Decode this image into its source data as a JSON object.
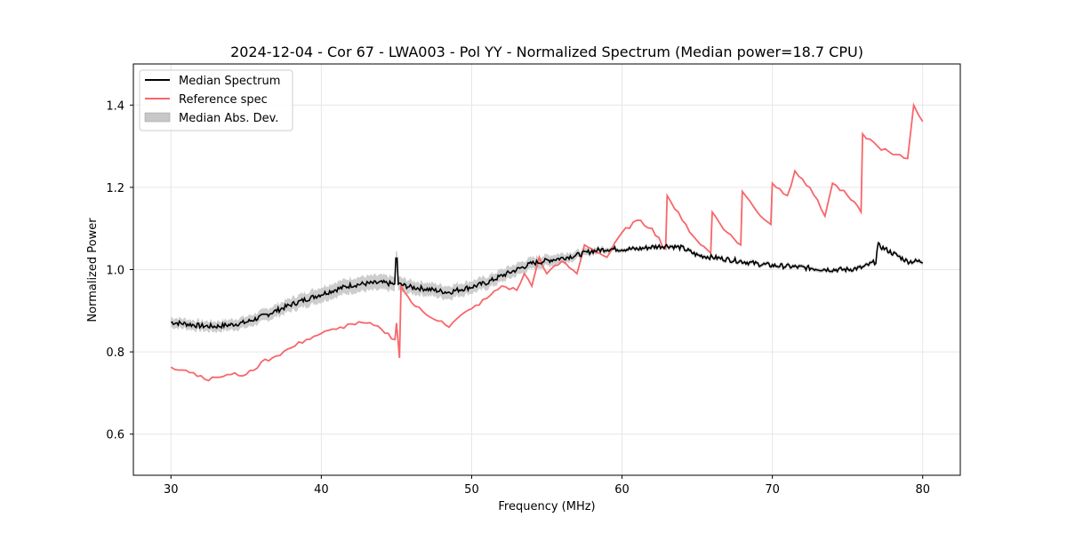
{
  "chart_data": {
    "type": "line",
    "title": "2024-12-04 - Cor 67 - LWA003 - Pol YY - Normalized Spectrum (Median power=18.7 CPU)",
    "xlabel": "Frequency (MHz)",
    "ylabel": "Normalized Power",
    "xlim": [
      27.5,
      82.5
    ],
    "ylim": [
      0.5,
      1.5
    ],
    "xticks": [
      30,
      40,
      50,
      60,
      70,
      80
    ],
    "yticks": [
      0.6,
      0.8,
      1.0,
      1.2,
      1.4
    ],
    "xtick_labels": [
      "30",
      "40",
      "50",
      "60",
      "70",
      "80"
    ],
    "ytick_labels": [
      "0.6",
      "0.8",
      "1.0",
      "1.2",
      "1.4"
    ],
    "grid": true,
    "legend_position": "top-left",
    "series": [
      {
        "name": "Median Spectrum",
        "color": "#000000",
        "x": [
          30,
          31,
          32,
          33,
          34,
          35,
          36,
          37,
          38,
          39,
          40,
          41,
          42,
          43,
          44,
          44.9,
          45.0,
          45.1,
          46,
          47,
          48,
          48.5,
          49,
          50,
          51,
          52,
          53,
          54,
          55,
          56,
          57,
          58,
          59,
          60,
          61,
          62,
          63,
          64,
          65,
          66,
          67,
          68,
          69,
          70,
          71,
          72,
          73,
          74,
          75,
          76,
          76.9,
          77,
          78,
          79,
          80
        ],
        "values": [
          0.872,
          0.868,
          0.863,
          0.862,
          0.866,
          0.872,
          0.885,
          0.9,
          0.915,
          0.928,
          0.94,
          0.952,
          0.962,
          0.966,
          0.968,
          0.965,
          1.07,
          0.965,
          0.957,
          0.953,
          0.947,
          0.945,
          0.95,
          0.958,
          0.968,
          0.985,
          1.0,
          1.015,
          1.022,
          1.028,
          1.035,
          1.045,
          1.05,
          1.05,
          1.05,
          1.055,
          1.058,
          1.053,
          1.035,
          1.03,
          1.025,
          1.02,
          1.014,
          1.01,
          1.008,
          1.005,
          1.002,
          1.0,
          1.0,
          1.005,
          1.02,
          1.06,
          1.04,
          1.02,
          1.02
        ]
      },
      {
        "name": "Reference spec",
        "color": "#f8666a",
        "x": [
          30,
          31,
          32,
          32.5,
          33,
          34,
          35,
          35.5,
          36,
          37,
          38,
          39,
          40,
          41,
          42,
          43,
          44,
          44.9,
          45.0,
          45.2,
          45.3,
          46,
          47,
          48,
          48.5,
          49,
          50,
          51,
          52,
          53,
          53.5,
          54,
          54.5,
          55,
          56,
          57,
          57.5,
          58,
          59,
          60,
          61,
          62,
          62.9,
          63,
          64,
          65,
          65.9,
          66,
          67,
          67.9,
          68,
          69,
          69.9,
          70,
          71,
          71.5,
          72,
          73,
          73.5,
          74,
          75,
          75.9,
          76,
          77,
          78,
          79,
          79.4,
          80
        ],
        "values": [
          0.763,
          0.755,
          0.742,
          0.73,
          0.738,
          0.745,
          0.745,
          0.755,
          0.775,
          0.79,
          0.81,
          0.83,
          0.845,
          0.855,
          0.868,
          0.87,
          0.855,
          0.83,
          0.87,
          0.785,
          0.96,
          0.92,
          0.89,
          0.875,
          0.86,
          0.88,
          0.905,
          0.93,
          0.96,
          0.95,
          0.99,
          0.96,
          1.03,
          0.99,
          1.02,
          0.99,
          1.06,
          1.05,
          1.03,
          1.09,
          1.12,
          1.1,
          1.05,
          1.18,
          1.12,
          1.07,
          1.04,
          1.14,
          1.09,
          1.06,
          1.19,
          1.14,
          1.11,
          1.21,
          1.18,
          1.24,
          1.22,
          1.17,
          1.13,
          1.21,
          1.18,
          1.14,
          1.33,
          1.3,
          1.28,
          1.27,
          1.4,
          1.36
        ]
      },
      {
        "name": "Median Abs. Dev.",
        "color": "#c8c8c8",
        "x": [
          30,
          32,
          34,
          36,
          38,
          40,
          42,
          44,
          46,
          48,
          50,
          52,
          54,
          56,
          58,
          60
        ],
        "values": [
          0.012,
          0.012,
          0.013,
          0.014,
          0.016,
          0.018,
          0.018,
          0.018,
          0.016,
          0.016,
          0.015,
          0.015,
          0.014,
          0.012,
          0.008,
          0.005
        ]
      }
    ]
  }
}
